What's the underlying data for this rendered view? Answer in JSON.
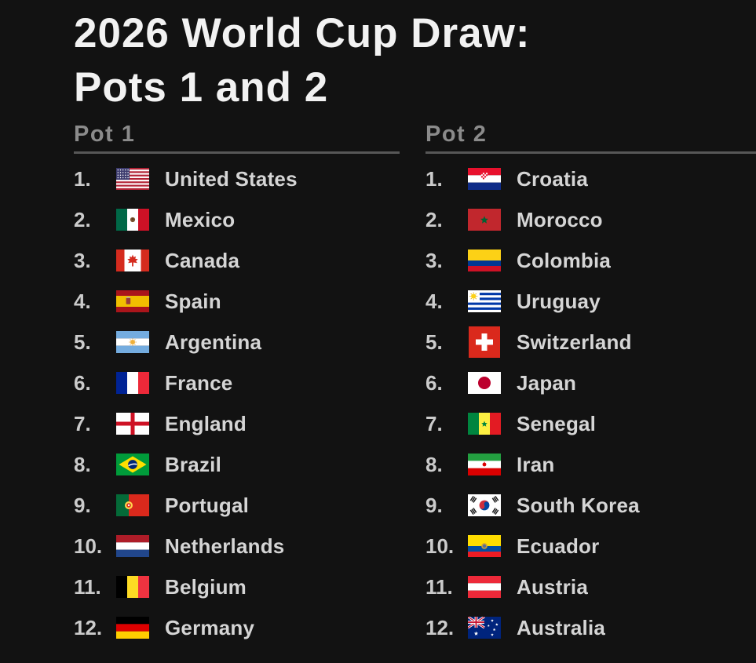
{
  "header": {
    "title_line1": "2026 World Cup Draw:",
    "title_line2": "Pots 1 and 2"
  },
  "pots": [
    {
      "label": "Pot 1",
      "items": [
        {
          "rank": "1.",
          "country": "United States",
          "flag_icon": "flag-us-icon"
        },
        {
          "rank": "2.",
          "country": "Mexico",
          "flag_icon": "flag-mx-icon"
        },
        {
          "rank": "3.",
          "country": "Canada",
          "flag_icon": "flag-ca-icon"
        },
        {
          "rank": "4.",
          "country": "Spain",
          "flag_icon": "flag-es-icon"
        },
        {
          "rank": "5.",
          "country": "Argentina",
          "flag_icon": "flag-ar-icon"
        },
        {
          "rank": "6.",
          "country": "France",
          "flag_icon": "flag-fr-icon"
        },
        {
          "rank": "7.",
          "country": "England",
          "flag_icon": "flag-eng-icon"
        },
        {
          "rank": "8.",
          "country": "Brazil",
          "flag_icon": "flag-br-icon"
        },
        {
          "rank": "9.",
          "country": "Portugal",
          "flag_icon": "flag-pt-icon"
        },
        {
          "rank": "10.",
          "country": "Netherlands",
          "flag_icon": "flag-nl-icon"
        },
        {
          "rank": "11.",
          "country": "Belgium",
          "flag_icon": "flag-be-icon"
        },
        {
          "rank": "12.",
          "country": "Germany",
          "flag_icon": "flag-de-icon"
        }
      ]
    },
    {
      "label": "Pot 2",
      "items": [
        {
          "rank": "1.",
          "country": "Croatia",
          "flag_icon": "flag-hr-icon"
        },
        {
          "rank": "2.",
          "country": "Morocco",
          "flag_icon": "flag-ma-icon"
        },
        {
          "rank": "3.",
          "country": "Colombia",
          "flag_icon": "flag-co-icon"
        },
        {
          "rank": "4.",
          "country": "Uruguay",
          "flag_icon": "flag-uy-icon"
        },
        {
          "rank": "5.",
          "country": "Switzerland",
          "flag_icon": "flag-ch-icon"
        },
        {
          "rank": "6.",
          "country": "Japan",
          "flag_icon": "flag-jp-icon"
        },
        {
          "rank": "7.",
          "country": "Senegal",
          "flag_icon": "flag-sn-icon"
        },
        {
          "rank": "8.",
          "country": "Iran",
          "flag_icon": "flag-ir-icon"
        },
        {
          "rank": "9.",
          "country": "South Korea",
          "flag_icon": "flag-kr-icon"
        },
        {
          "rank": "10.",
          "country": "Ecuador",
          "flag_icon": "flag-ec-icon"
        },
        {
          "rank": "11.",
          "country": "Austria",
          "flag_icon": "flag-at-icon"
        },
        {
          "rank": "12.",
          "country": "Australia",
          "flag_icon": "flag-au-icon"
        }
      ]
    }
  ],
  "colors": {
    "background": "#121212",
    "title_text": "#f2f2f2",
    "pot_label_text": "#8b8b8b",
    "rule": "#575757",
    "rank_text": "#cbcbcb",
    "country_text": "#d5d5d5"
  },
  "chart_data": {
    "type": "table",
    "title": "2026 World Cup Draw: Pots 1 and 2",
    "columns": [
      "Pot 1",
      "Pot 2"
    ],
    "rows": [
      [
        "United States",
        "Croatia"
      ],
      [
        "Mexico",
        "Morocco"
      ],
      [
        "Canada",
        "Colombia"
      ],
      [
        "Spain",
        "Uruguay"
      ],
      [
        "Argentina",
        "Switzerland"
      ],
      [
        "France",
        "Japan"
      ],
      [
        "England",
        "Senegal"
      ],
      [
        "Brazil",
        "Iran"
      ],
      [
        "Portugal",
        "South Korea"
      ],
      [
        "Netherlands",
        "Ecuador"
      ],
      [
        "Belgium",
        "Austria"
      ],
      [
        "Germany",
        "Australia"
      ]
    ],
    "layout_hints": {
      "ranked": true,
      "rank_range": [
        1,
        12
      ],
      "legend": "none",
      "grid": "off"
    }
  }
}
